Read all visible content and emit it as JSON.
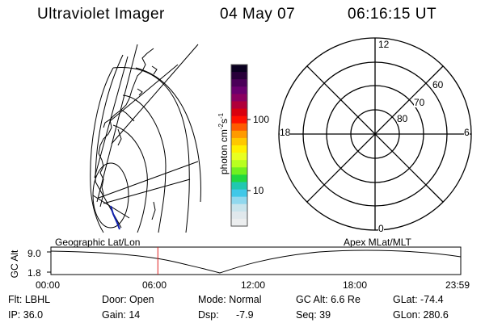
{
  "header": {
    "instrument": "Ultraviolet Imager",
    "date": "04 May 07",
    "time": "06:16:15 UT"
  },
  "colorbar": {
    "unit": "photon cm",
    "unit_exp1": "-2",
    "unit_mid": "s",
    "unit_exp2": "-1",
    "tick_high": "100",
    "tick_low": "10",
    "colors": [
      "#0a0020",
      "#28003a",
      "#4a0058",
      "#6a006e",
      "#8a0060",
      "#b0003a",
      "#d8000e",
      "#ff1000",
      "#ff5a00",
      "#ff9a00",
      "#ffc800",
      "#fff000",
      "#e8ff20",
      "#b8ff20",
      "#70f020",
      "#20d840",
      "#20c8b0",
      "#40c8e8",
      "#90d8ee",
      "#c8e4ec",
      "#e0e8ec",
      "#eceeef"
    ]
  },
  "polar": {
    "mlt_top": "12",
    "mlt_left": "18",
    "mlt_right": "6",
    "mlt_bottom": "0",
    "lat_60": "60",
    "lat_70": "70",
    "lat_80": "80"
  },
  "timeline": {
    "left_title": "Geographic Lat/Lon",
    "right_title": "Apex MLat/MLT",
    "axis_label": "GC Alt",
    "y_high": "9.0",
    "y_low": "1.8",
    "x_ticks": [
      "00:00",
      "06:00",
      "12:00",
      "18:00",
      "23:59"
    ],
    "current_time_fraction": 0.261
  },
  "footer": {
    "filter": "Flt: LBHL",
    "door": "Door: Open",
    "mode": "Mode: Normal",
    "gc_alt": "GC Alt: 6.6 Re",
    "glat": "GLat: -74.4",
    "ip": "IP: 36.0",
    "gain": "Gain: 14",
    "dsp_label": "Dsp:",
    "dsp_value": "-7.9",
    "seq": "Seq: 39",
    "glon": "GLon: 280.6"
  }
}
